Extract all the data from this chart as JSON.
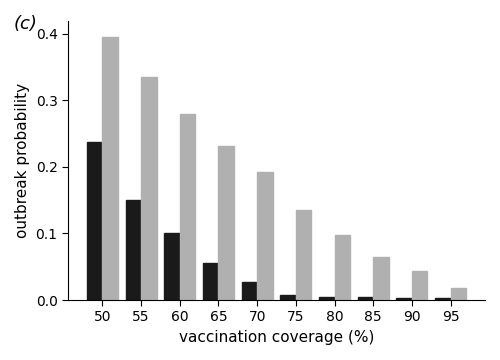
{
  "categories": [
    50,
    55,
    60,
    65,
    70,
    75,
    80,
    85,
    90,
    95
  ],
  "black_bars": [
    0.238,
    0.15,
    0.1,
    0.055,
    0.027,
    0.008,
    0.005,
    0.004,
    0.003,
    0.003
  ],
  "gray_bars": [
    0.395,
    0.335,
    0.28,
    0.232,
    0.192,
    0.135,
    0.097,
    0.065,
    0.043,
    0.018
  ],
  "black_color": "#1a1a1a",
  "gray_color": "#b0b0b0",
  "xlabel": "vaccination coverage (%)",
  "ylabel": "outbreak probability",
  "ylim": [
    0,
    0.42
  ],
  "yticks": [
    0.0,
    0.1,
    0.2,
    0.3,
    0.4
  ],
  "bar_width": 0.4,
  "label_text": "(c)",
  "label_fontsize": 13,
  "tick_fontsize": 10,
  "axis_label_fontsize": 11,
  "background_color": "#ffffff"
}
